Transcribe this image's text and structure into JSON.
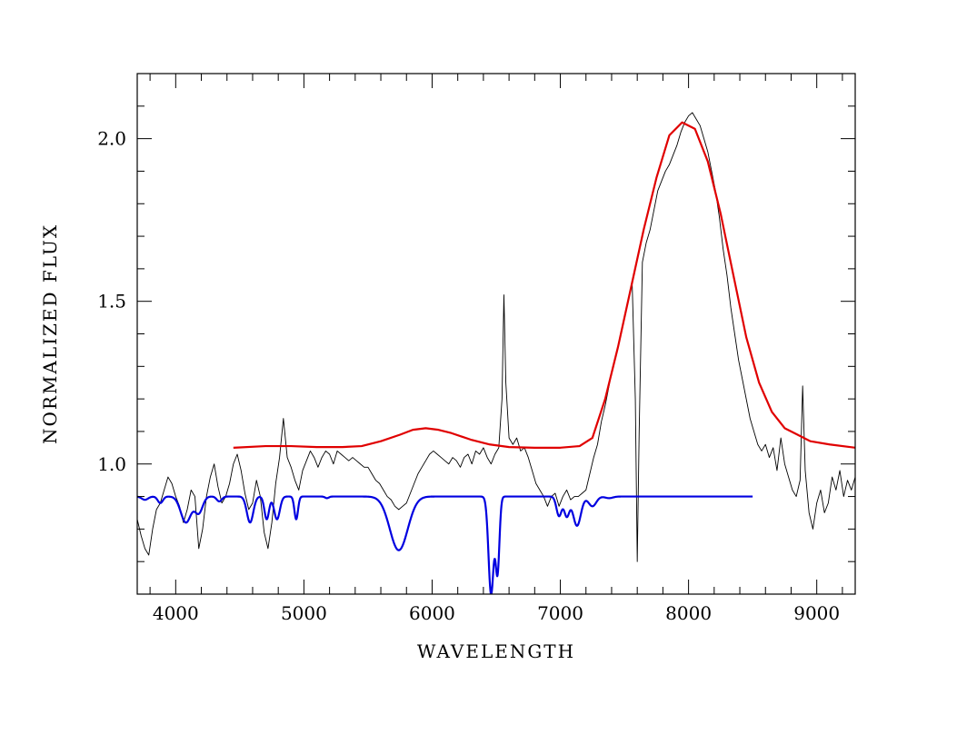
{
  "chart_data": {
    "type": "line",
    "title": "",
    "xlabel": "WAVELENGTH",
    "ylabel": "NORMALIZED FLUX",
    "xlim": [
      3700,
      9300
    ],
    "ylim": [
      0.6,
      2.2
    ],
    "x_ticks": [
      4000,
      5000,
      6000,
      7000,
      8000,
      9000
    ],
    "x_tick_labels": [
      "4000",
      "5000",
      "6000",
      "7000",
      "8000",
      "9000"
    ],
    "y_ticks": [
      1.0,
      1.5,
      2.0
    ],
    "y_tick_labels": [
      "1.0",
      "1.5",
      "2.0"
    ],
    "x_minor_step": 200,
    "y_minor_step": 0.1,
    "grid": false,
    "legend": "none",
    "series": [
      {
        "color": "#000000",
        "style": "noisy-thin",
        "points": [
          [
            3700,
            0.83
          ],
          [
            3730,
            0.78
          ],
          [
            3760,
            0.74
          ],
          [
            3790,
            0.72
          ],
          [
            3820,
            0.8
          ],
          [
            3850,
            0.86
          ],
          [
            3880,
            0.88
          ],
          [
            3910,
            0.92
          ],
          [
            3940,
            0.96
          ],
          [
            3970,
            0.94
          ],
          [
            4000,
            0.9
          ],
          [
            4030,
            0.87
          ],
          [
            4060,
            0.82
          ],
          [
            4090,
            0.86
          ],
          [
            4120,
            0.92
          ],
          [
            4150,
            0.9
          ],
          [
            4180,
            0.74
          ],
          [
            4210,
            0.8
          ],
          [
            4240,
            0.9
          ],
          [
            4270,
            0.96
          ],
          [
            4300,
            1.0
          ],
          [
            4330,
            0.93
          ],
          [
            4360,
            0.88
          ],
          [
            4390,
            0.9
          ],
          [
            4420,
            0.94
          ],
          [
            4450,
            1.0
          ],
          [
            4480,
            1.03
          ],
          [
            4510,
            0.98
          ],
          [
            4540,
            0.91
          ],
          [
            4570,
            0.86
          ],
          [
            4600,
            0.88
          ],
          [
            4630,
            0.95
          ],
          [
            4660,
            0.9
          ],
          [
            4690,
            0.79
          ],
          [
            4720,
            0.74
          ],
          [
            4750,
            0.82
          ],
          [
            4780,
            0.94
          ],
          [
            4810,
            1.02
          ],
          [
            4840,
            1.14
          ],
          [
            4870,
            1.02
          ],
          [
            4900,
            0.99
          ],
          [
            4930,
            0.95
          ],
          [
            4960,
            0.92
          ],
          [
            4990,
            0.98
          ],
          [
            5020,
            1.01
          ],
          [
            5050,
            1.04
          ],
          [
            5080,
            1.02
          ],
          [
            5110,
            0.99
          ],
          [
            5140,
            1.02
          ],
          [
            5170,
            1.04
          ],
          [
            5200,
            1.03
          ],
          [
            5230,
            1.0
          ],
          [
            5260,
            1.04
          ],
          [
            5290,
            1.03
          ],
          [
            5320,
            1.02
          ],
          [
            5350,
            1.01
          ],
          [
            5380,
            1.02
          ],
          [
            5410,
            1.01
          ],
          [
            5440,
            1.0
          ],
          [
            5470,
            0.99
          ],
          [
            5500,
            0.99
          ],
          [
            5530,
            0.97
          ],
          [
            5560,
            0.95
          ],
          [
            5590,
            0.94
          ],
          [
            5620,
            0.92
          ],
          [
            5650,
            0.9
          ],
          [
            5680,
            0.89
          ],
          [
            5710,
            0.87
          ],
          [
            5740,
            0.86
          ],
          [
            5770,
            0.87
          ],
          [
            5800,
            0.88
          ],
          [
            5830,
            0.91
          ],
          [
            5860,
            0.94
          ],
          [
            5890,
            0.97
          ],
          [
            5920,
            0.99
          ],
          [
            5950,
            1.01
          ],
          [
            5980,
            1.03
          ],
          [
            6010,
            1.04
          ],
          [
            6040,
            1.03
          ],
          [
            6070,
            1.02
          ],
          [
            6100,
            1.01
          ],
          [
            6130,
            1.0
          ],
          [
            6160,
            1.02
          ],
          [
            6190,
            1.01
          ],
          [
            6220,
            0.99
          ],
          [
            6250,
            1.02
          ],
          [
            6280,
            1.03
          ],
          [
            6310,
            1.0
          ],
          [
            6340,
            1.04
          ],
          [
            6370,
            1.03
          ],
          [
            6400,
            1.05
          ],
          [
            6430,
            1.02
          ],
          [
            6460,
            1.0
          ],
          [
            6490,
            1.03
          ],
          [
            6520,
            1.05
          ],
          [
            6545,
            1.2
          ],
          [
            6560,
            1.52
          ],
          [
            6575,
            1.25
          ],
          [
            6600,
            1.08
          ],
          [
            6630,
            1.06
          ],
          [
            6660,
            1.08
          ],
          [
            6690,
            1.04
          ],
          [
            6720,
            1.05
          ],
          [
            6750,
            1.02
          ],
          [
            6780,
            0.98
          ],
          [
            6810,
            0.94
          ],
          [
            6840,
            0.92
          ],
          [
            6870,
            0.9
          ],
          [
            6900,
            0.87
          ],
          [
            6930,
            0.9
          ],
          [
            6960,
            0.91
          ],
          [
            6990,
            0.87
          ],
          [
            7020,
            0.9
          ],
          [
            7050,
            0.92
          ],
          [
            7080,
            0.89
          ],
          [
            7110,
            0.9
          ],
          [
            7140,
            0.9
          ],
          [
            7170,
            0.91
          ],
          [
            7200,
            0.92
          ],
          [
            7230,
            0.97
          ],
          [
            7260,
            1.02
          ],
          [
            7290,
            1.06
          ],
          [
            7320,
            1.13
          ],
          [
            7350,
            1.18
          ],
          [
            7380,
            1.24
          ],
          [
            7410,
            1.3
          ],
          [
            7440,
            1.34
          ],
          [
            7470,
            1.4
          ],
          [
            7500,
            1.45
          ],
          [
            7530,
            1.5
          ],
          [
            7560,
            1.56
          ],
          [
            7585,
            1.2
          ],
          [
            7600,
            0.7
          ],
          [
            7615,
            1.1
          ],
          [
            7640,
            1.62
          ],
          [
            7670,
            1.68
          ],
          [
            7700,
            1.72
          ],
          [
            7730,
            1.78
          ],
          [
            7760,
            1.84
          ],
          [
            7790,
            1.87
          ],
          [
            7820,
            1.9
          ],
          [
            7850,
            1.92
          ],
          [
            7880,
            1.95
          ],
          [
            7910,
            1.98
          ],
          [
            7940,
            2.02
          ],
          [
            7970,
            2.05
          ],
          [
            8000,
            2.07
          ],
          [
            8030,
            2.08
          ],
          [
            8060,
            2.06
          ],
          [
            8090,
            2.04
          ],
          [
            8120,
            2.0
          ],
          [
            8150,
            1.96
          ],
          [
            8180,
            1.9
          ],
          [
            8210,
            1.84
          ],
          [
            8240,
            1.76
          ],
          [
            8270,
            1.66
          ],
          [
            8300,
            1.58
          ],
          [
            8330,
            1.48
          ],
          [
            8360,
            1.4
          ],
          [
            8390,
            1.32
          ],
          [
            8420,
            1.26
          ],
          [
            8450,
            1.2
          ],
          [
            8480,
            1.14
          ],
          [
            8510,
            1.1
          ],
          [
            8540,
            1.06
          ],
          [
            8570,
            1.04
          ],
          [
            8600,
            1.06
          ],
          [
            8630,
            1.02
          ],
          [
            8660,
            1.05
          ],
          [
            8690,
            0.98
          ],
          [
            8720,
            1.08
          ],
          [
            8750,
            1.0
          ],
          [
            8780,
            0.96
          ],
          [
            8810,
            0.92
          ],
          [
            8840,
            0.9
          ],
          [
            8870,
            0.95
          ],
          [
            8890,
            1.24
          ],
          [
            8910,
            0.98
          ],
          [
            8940,
            0.85
          ],
          [
            8970,
            0.8
          ],
          [
            9000,
            0.88
          ],
          [
            9030,
            0.92
          ],
          [
            9060,
            0.85
          ],
          [
            9090,
            0.88
          ],
          [
            9120,
            0.96
          ],
          [
            9150,
            0.92
          ],
          [
            9180,
            0.98
          ],
          [
            9210,
            0.9
          ],
          [
            9240,
            0.95
          ],
          [
            9270,
            0.92
          ],
          [
            9300,
            0.96
          ]
        ]
      },
      {
        "color": "#e00000",
        "style": "smooth-thick",
        "points": [
          [
            4450,
            1.05
          ],
          [
            4700,
            1.055
          ],
          [
            4900,
            1.055
          ],
          [
            5100,
            1.052
          ],
          [
            5300,
            1.052
          ],
          [
            5450,
            1.055
          ],
          [
            5600,
            1.07
          ],
          [
            5750,
            1.09
          ],
          [
            5850,
            1.105
          ],
          [
            5950,
            1.11
          ],
          [
            6050,
            1.105
          ],
          [
            6150,
            1.095
          ],
          [
            6300,
            1.075
          ],
          [
            6450,
            1.06
          ],
          [
            6600,
            1.052
          ],
          [
            6800,
            1.05
          ],
          [
            7000,
            1.05
          ],
          [
            7150,
            1.055
          ],
          [
            7250,
            1.08
          ],
          [
            7350,
            1.2
          ],
          [
            7450,
            1.36
          ],
          [
            7550,
            1.54
          ],
          [
            7650,
            1.72
          ],
          [
            7750,
            1.88
          ],
          [
            7850,
            2.01
          ],
          [
            7950,
            2.05
          ],
          [
            8050,
            2.03
          ],
          [
            8150,
            1.93
          ],
          [
            8250,
            1.77
          ],
          [
            8350,
            1.58
          ],
          [
            8450,
            1.39
          ],
          [
            8550,
            1.25
          ],
          [
            8650,
            1.16
          ],
          [
            8750,
            1.11
          ],
          [
            8850,
            1.09
          ],
          [
            8950,
            1.07
          ],
          [
            9100,
            1.06
          ],
          [
            9300,
            1.05
          ]
        ]
      },
      {
        "color": "#0000e0",
        "style": "absorption-thick",
        "continuum": 0.9,
        "x_start": 3700,
        "x_end": 8500,
        "lines": [
          [
            3760,
            0.01,
            25
          ],
          [
            3880,
            0.02,
            20
          ],
          [
            4080,
            0.08,
            40
          ],
          [
            4180,
            0.05,
            30
          ],
          [
            4340,
            0.015,
            20
          ],
          [
            4580,
            0.08,
            25
          ],
          [
            4710,
            0.07,
            18
          ],
          [
            4790,
            0.07,
            22
          ],
          [
            4940,
            0.07,
            14
          ],
          [
            5180,
            0.005,
            15
          ],
          [
            5740,
            0.165,
            70
          ],
          [
            6460,
            0.3,
            20
          ],
          [
            6510,
            0.23,
            15
          ],
          [
            6990,
            0.06,
            20
          ],
          [
            7050,
            0.06,
            20
          ],
          [
            7130,
            0.09,
            30
          ],
          [
            7250,
            0.03,
            30
          ],
          [
            7380,
            0.005,
            30
          ]
        ]
      }
    ]
  }
}
